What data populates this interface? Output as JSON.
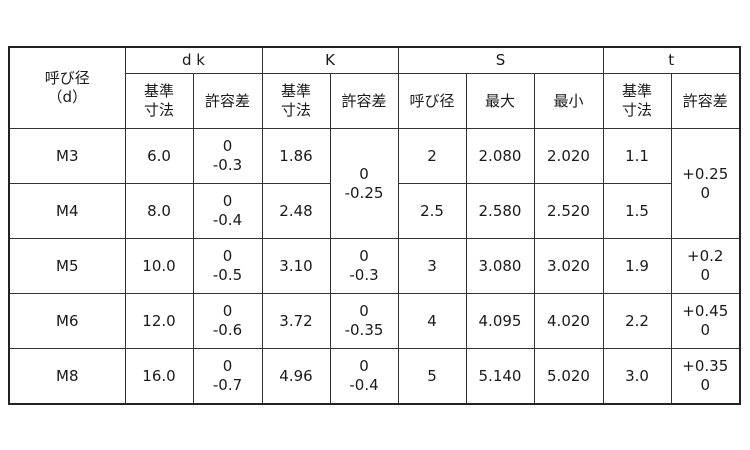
{
  "header": {
    "nominal": [
      "呼び径",
      "（d）"
    ],
    "dk": "d k",
    "k": "K",
    "s": "S",
    "t": "t",
    "basic": [
      "基準",
      "寸法"
    ],
    "tolerance": "許容差",
    "s_nominal": "呼び径",
    "max": "最大",
    "min": "最小"
  },
  "rows": [
    {
      "size": "M3",
      "dk": "6.0",
      "dk_tol": [
        "0",
        "-0.3"
      ],
      "k": "1.86",
      "k_tol": [
        "0",
        "-0.25"
      ],
      "s_nom": "2",
      "s_max": "2.080",
      "s_min": "2.020",
      "t": "1.1",
      "t_tol": [
        "+0.25",
        "0"
      ]
    },
    {
      "size": "M4",
      "dk": "8.0",
      "dk_tol": [
        "0",
        "-0.4"
      ],
      "k": "2.48",
      "s_nom": "2.5",
      "s_max": "2.580",
      "s_min": "2.520",
      "t": "1.5"
    },
    {
      "size": "M5",
      "dk": "10.0",
      "dk_tol": [
        "0",
        "-0.5"
      ],
      "k": "3.10",
      "k_tol": [
        "0",
        "-0.3"
      ],
      "s_nom": "3",
      "s_max": "3.080",
      "s_min": "3.020",
      "t": "1.9",
      "t_tol": [
        "+0.2",
        "0"
      ]
    },
    {
      "size": "M6",
      "dk": "12.0",
      "dk_tol": [
        "0",
        "-0.6"
      ],
      "k": "3.72",
      "k_tol": [
        "0",
        "-0.35"
      ],
      "s_nom": "4",
      "s_max": "4.095",
      "s_min": "4.020",
      "t": "2.2",
      "t_tol": [
        "+0.45",
        "0"
      ]
    },
    {
      "size": "M8",
      "dk": "16.0",
      "dk_tol": [
        "0",
        "-0.7"
      ],
      "k": "4.96",
      "k_tol": [
        "0",
        "-0.4"
      ],
      "s_nom": "5",
      "s_max": "5.140",
      "s_min": "5.020",
      "t": "3.0",
      "t_tol": [
        "+0.35",
        "0"
      ]
    }
  ]
}
